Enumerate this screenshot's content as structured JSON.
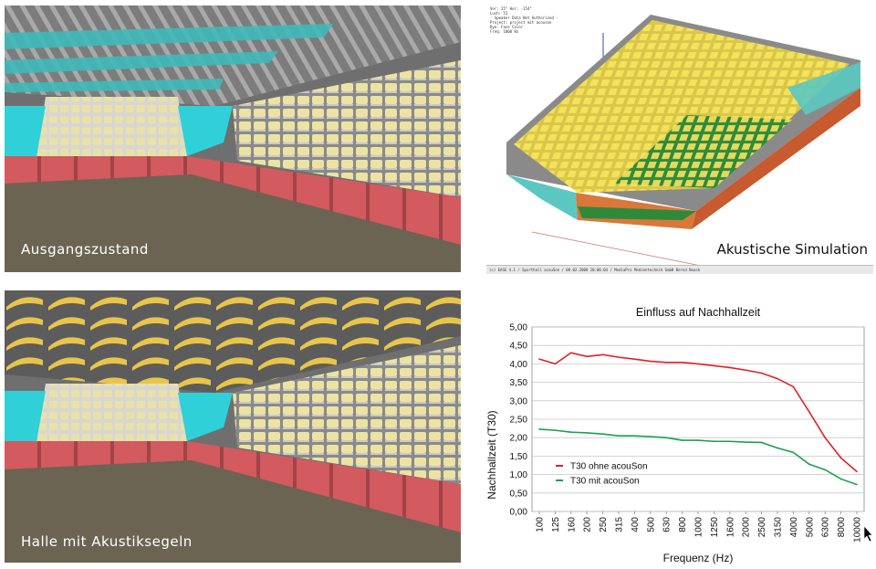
{
  "panels": {
    "top_left_caption": "Ausgangszustand",
    "bottom_left_caption": "Halle mit Akustiksegeln",
    "top_right_caption": "Akustische Simulation",
    "sim_meta": [
      "Ver: 25°   Hor: -154°",
      "Lush: 51",
      "- Speaker Data Not Authorized -",
      "Project: project mit acouson",
      "Dye: Face Color",
      "Freq: 1000 Hz"
    ],
    "sim_footer": "(c) EASE 4.1  /  Sporthall acouSon  / 08.02.2008 20:06:04 / MediaPro Medientechnik GmbH Bernd Noack"
  },
  "chart_data": {
    "type": "line",
    "title": "Einfluss auf Nachhallzeit",
    "xlabel": "Frequenz  (Hz)",
    "ylabel": "Nachhallzeit  (T30)",
    "categories": [
      "100",
      "125",
      "160",
      "200",
      "250",
      "315",
      "400",
      "500",
      "630",
      "800",
      "1000",
      "1250",
      "1600",
      "2000",
      "2500",
      "3150",
      "4000",
      "5000",
      "6300",
      "8000",
      "10000"
    ],
    "ylim": [
      0,
      5
    ],
    "yticks": [
      "0,00",
      "0,50",
      "1,00",
      "1,50",
      "2,00",
      "2,50",
      "3,00",
      "3,50",
      "4,00",
      "4,50",
      "5,00"
    ],
    "grid": true,
    "legend_position": "bottom-left",
    "series": [
      {
        "name": "T30 ohne acouSon",
        "color": "#e0202a",
        "values": [
          4.13,
          4.0,
          4.3,
          4.2,
          4.25,
          4.18,
          4.13,
          4.07,
          4.04,
          4.04,
          4.0,
          3.95,
          3.9,
          3.83,
          3.75,
          3.6,
          3.38,
          2.7,
          2.0,
          1.45,
          1.08
        ]
      },
      {
        "name": "T30 mit acouSon",
        "color": "#1aa050",
        "values": [
          2.23,
          2.2,
          2.15,
          2.13,
          2.1,
          2.05,
          2.05,
          2.03,
          2.0,
          1.93,
          1.93,
          1.9,
          1.9,
          1.88,
          1.87,
          1.72,
          1.6,
          1.28,
          1.13,
          0.88,
          0.73
        ]
      }
    ]
  }
}
